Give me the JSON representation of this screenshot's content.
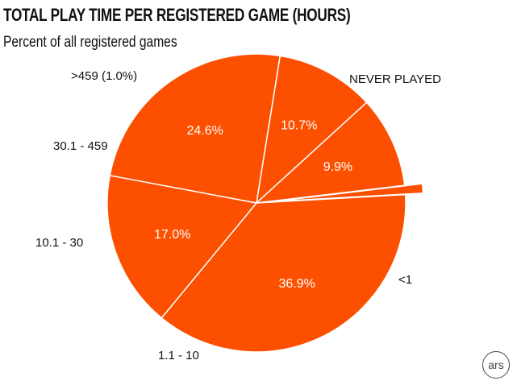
{
  "chart_data": {
    "type": "pie",
    "title": "TOTAL PLAY TIME PER REGISTERED GAME (HOURS)",
    "subtitle": "Percent of all registered games",
    "slices": [
      {
        "label": "NEVER PLAYED",
        "value": 36.9,
        "value_label": "36.9%"
      },
      {
        "label": "<1",
        "value": 17.0,
        "value_label": "17.0%"
      },
      {
        "label": "1.1 - 10",
        "value": 24.6,
        "value_label": "24.6%"
      },
      {
        "label": "10.1 - 30",
        "value": 10.7,
        "value_label": "10.7%"
      },
      {
        "label": "30.1 - 459",
        "value": 9.9,
        "value_label": "9.9%"
      },
      {
        "label": ">459 (1.0%)",
        "value": 1.0,
        "value_label": "",
        "exploded": true
      }
    ],
    "colors": {
      "slice": "#fc5000",
      "edge": "#ffffff"
    }
  },
  "logo": {
    "text": "ars"
  }
}
